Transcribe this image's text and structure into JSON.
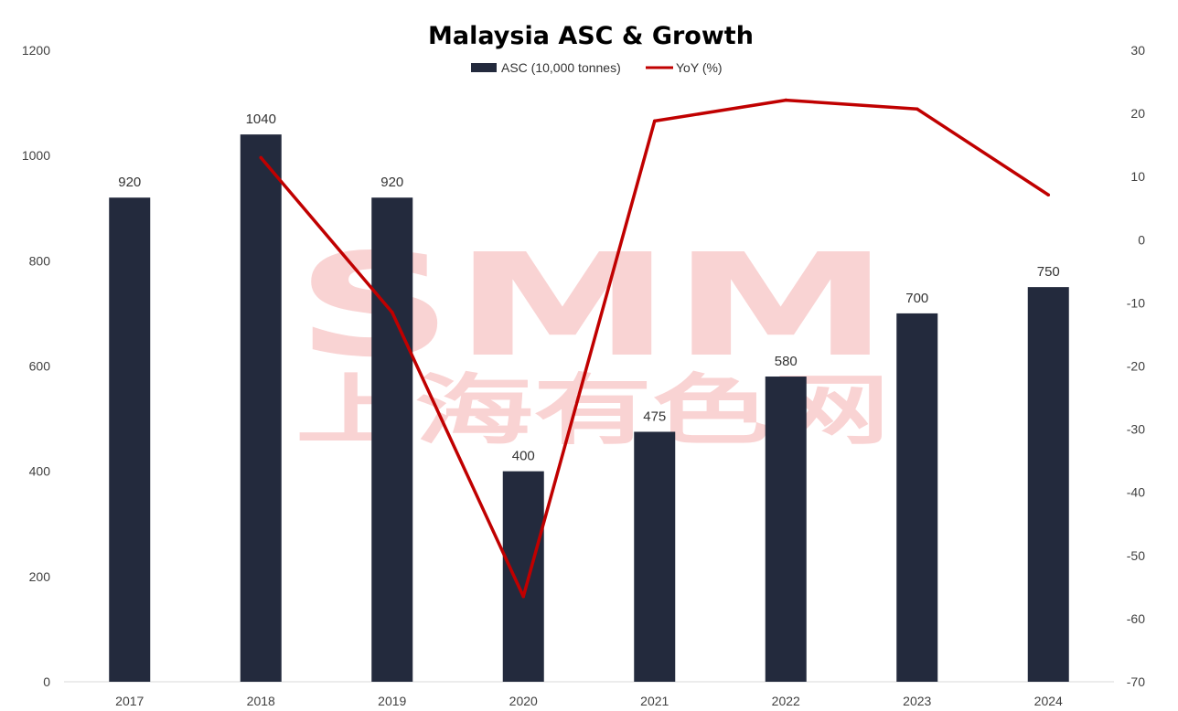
{
  "chart_data": {
    "type": "bar",
    "title": "Malaysia ASC & Growth",
    "categories": [
      "2017",
      "2018",
      "2019",
      "2020",
      "2021",
      "2022",
      "2023",
      "2024"
    ],
    "series": [
      {
        "name": "ASC (10,000 tonnes)",
        "kind": "bar",
        "axis": "left",
        "color": "#232a3d",
        "values": [
          920,
          1040,
          920,
          400,
          475,
          580,
          700,
          750
        ],
        "labels": [
          "920",
          "1040",
          "920",
          "400",
          "475",
          "580",
          "700",
          "750"
        ]
      },
      {
        "name": "YoY (%)",
        "kind": "line",
        "axis": "right",
        "color": "#c00000",
        "values": [
          null,
          13.0,
          -11.5,
          -56.5,
          18.8,
          22.1,
          20.7,
          7.1
        ]
      }
    ],
    "y_left": {
      "min": 0,
      "max": 1200,
      "ticks": [
        "0",
        "200",
        "400",
        "600",
        "800",
        "1000",
        "1200"
      ]
    },
    "y_right": {
      "min": -70,
      "max": 30,
      "ticks": [
        "-70",
        "-60",
        "-50",
        "-40",
        "-30",
        "-20",
        "-10",
        "0",
        "10",
        "20",
        "30"
      ]
    },
    "legend_position": "top-center",
    "grid": false,
    "watermark": {
      "logo": "SMM",
      "text": "上海有色网"
    }
  }
}
